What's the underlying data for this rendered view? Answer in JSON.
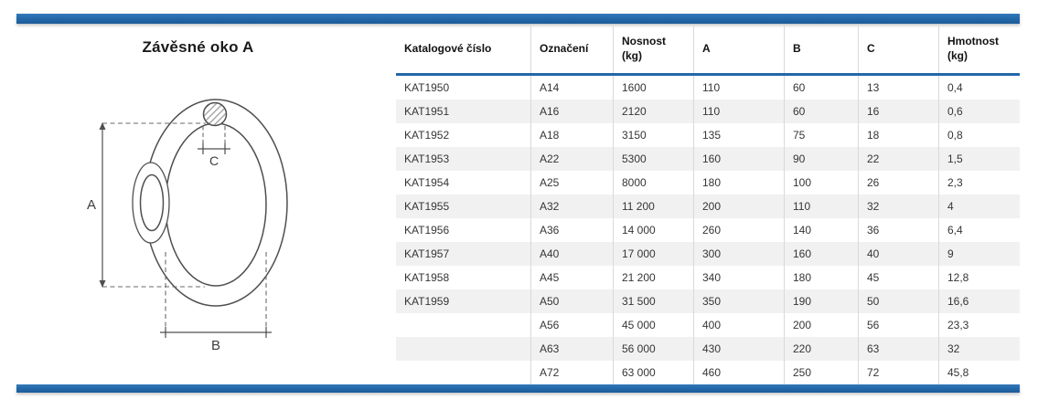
{
  "page": {
    "accent_blue": "#2368a9",
    "row_alt_color": "#f1f1f1",
    "background": "#ffffff"
  },
  "left_panel": {
    "title": "Závěsné oko A",
    "diagram": {
      "description-labels": {
        "a": "A",
        "b": "B",
        "c": "C"
      }
    }
  },
  "table": {
    "columns": [
      "Katalogové číslo",
      "Označení",
      "Nosnost (kg)",
      "A",
      "B",
      "C",
      "Hmotnost (kg)"
    ],
    "rows": [
      [
        "KAT1950",
        "A14",
        "1600",
        "110",
        "60",
        "13",
        "0,4"
      ],
      [
        "KAT1951",
        "A16",
        "2120",
        "110",
        "60",
        "16",
        "0,6"
      ],
      [
        "KAT1952",
        "A18",
        "3150",
        "135",
        "75",
        "18",
        "0,8"
      ],
      [
        "KAT1953",
        "A22",
        "5300",
        "160",
        "90",
        "22",
        "1,5"
      ],
      [
        "KAT1954",
        "A25",
        "8000",
        "180",
        "100",
        "26",
        "2,3"
      ],
      [
        "KAT1955",
        "A32",
        "11 200",
        "200",
        "110",
        "32",
        "4"
      ],
      [
        "KAT1956",
        "A36",
        "14 000",
        "260",
        "140",
        "36",
        "6,4"
      ],
      [
        "KAT1957",
        "A40",
        "17 000",
        "300",
        "160",
        "40",
        "9"
      ],
      [
        "KAT1958",
        "A45",
        "21 200",
        "340",
        "180",
        "45",
        "12,8"
      ],
      [
        "KAT1959",
        "A50",
        "31 500",
        "350",
        "190",
        "50",
        "16,6"
      ],
      [
        "",
        "A56",
        "45 000",
        "400",
        "200",
        "56",
        "23,3"
      ],
      [
        "",
        "A63",
        "56 000",
        "430",
        "220",
        "63",
        "32"
      ],
      [
        "",
        "A72",
        "63 000",
        "460",
        "250",
        "72",
        "45,8"
      ]
    ]
  }
}
